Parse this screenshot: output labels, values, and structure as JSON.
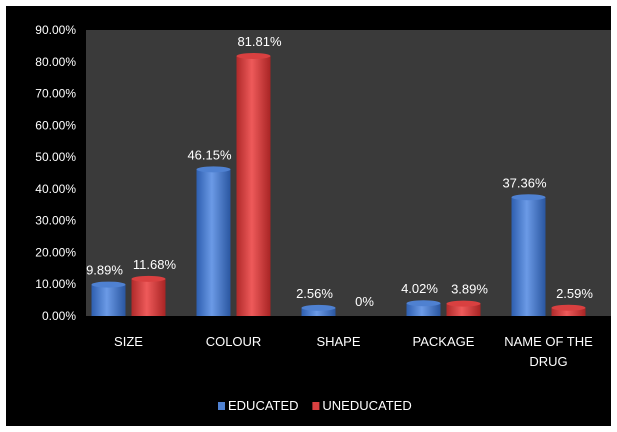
{
  "chart_data": {
    "type": "bar",
    "categories": [
      "SIZE",
      "COLOUR",
      "SHAPE",
      "PACKAGE",
      "NAME OF THE DRUG"
    ],
    "series": [
      {
        "name": "EDUCATED",
        "values": [
          9.89,
          46.15,
          2.56,
          4.02,
          37.36
        ],
        "color": "#4f81d1",
        "labels": [
          "9.89%",
          "46.15%",
          "2.56%",
          "4.02%",
          "37.36%"
        ]
      },
      {
        "name": "UNEDUCATED",
        "values": [
          11.68,
          81.81,
          0,
          3.89,
          2.59
        ],
        "color": "#d94040",
        "labels": [
          "11.68%",
          "81.81%",
          "0%",
          "3.89%",
          "2.59%"
        ]
      }
    ],
    "yticks": [
      "0.00%",
      "10.00%",
      "20.00%",
      "30.00%",
      "40.00%",
      "50.00%",
      "60.00%",
      "70.00%",
      "80.00%",
      "90.00%"
    ],
    "ylim": [
      0,
      90
    ],
    "title": "",
    "xlabel": "",
    "ylabel": "",
    "legend_position": "bottom",
    "grid": false,
    "background": "#000000",
    "plot_area_color": "#3a3a3a",
    "text_color": "#ffffff"
  }
}
